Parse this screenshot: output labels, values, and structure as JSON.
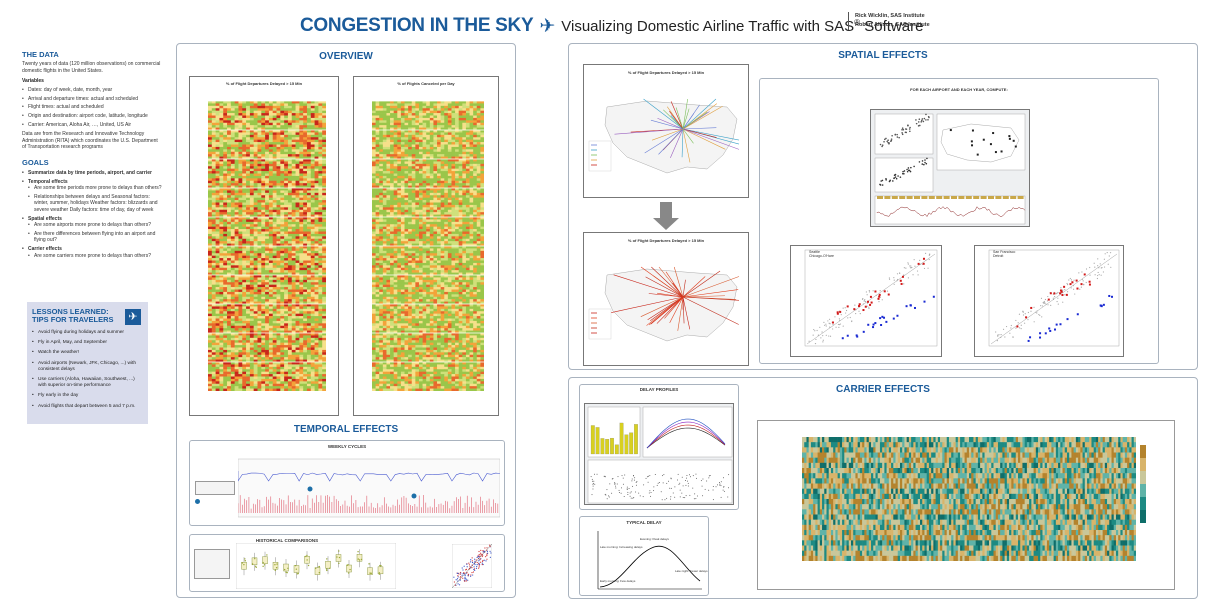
{
  "header": {
    "title": "CONGESTION IN THE SKY",
    "plane_glyph": "✈",
    "subtitle": "Visualizing Domestic Airline Traffic with SAS",
    "registered": "®",
    "subtitle_end": " Software",
    "authors": [
      "Rick Wicklin, SAS Institute",
      "Robert Allison, SAS Institute"
    ]
  },
  "the_data": {
    "title": "THE DATA",
    "intro": "Twenty years of data (120 million observations) on commercial domestic flights in the United States.",
    "variables_label": "Variables",
    "variables": [
      "Dates: day of week, date, month, year",
      "Arrival and departure times: actual and scheduled",
      "Flight times: actual and scheduled",
      "Origin and destination: airport code, latitude, longitude",
      "Carrier: American, Aloha Air, …, United, US Air"
    ],
    "source": "Data are from the Research and Innovative Technology Administration (RITA) which coordinates the U.S. Department of Transportation research programs"
  },
  "goals": {
    "title": "GOALS",
    "items": [
      {
        "label": "Summarize data by time periods, airport, and carrier",
        "sub": []
      },
      {
        "label": "Temporal effects",
        "sub": [
          "Are some time periods more prone to delays than others?",
          "Relationships between delays and Seasonal factors: winter, summer, holidays Weather factors: blizzards and severe weather Daily factors: time of day, day of week"
        ]
      },
      {
        "label": "Spatial effects",
        "sub": [
          "Are some airports more prone to delays than others?",
          "Are there differences between flying into an airport and flying out?"
        ]
      },
      {
        "label": "Carrier effects",
        "sub": [
          "Are some carriers more prone to delays than others?"
        ]
      }
    ]
  },
  "lessons": {
    "title_line1": "LESSONS LEARNED:",
    "title_line2": "TIPS FOR TRAVELERS",
    "icon": "✈",
    "items": [
      "Avoid flying during holidays and summer",
      "Fly in April, May, and September",
      "Watch the weather!",
      "Avoid airports (Newark, JFK, Chicago, ...) with consistent delays",
      "Use carriers (Aloha, Hawaiian, Southwest, ...) with superior on-time performance",
      "Fly early in the day",
      "Avoid flights that depart between 5 and 7 p.m."
    ]
  },
  "overview": {
    "title": "OVERVIEW",
    "chart1_title": "% of Flight Departures Delayed > 15 Min",
    "chart2_title": "% of Flights Canceled per Day"
  },
  "temporal": {
    "title": "TEMPORAL EFFECTS",
    "weekly_title": "WEEKLY CYCLES",
    "historical_title": "HISTORICAL COMPARISONS"
  },
  "spatial": {
    "title": "SPATIAL EFFECTS",
    "map_title": "% of Flight Departures Delayed > 15 Min",
    "compare_heading": "FOR EACH AIRPORT AND EACH YEAR, COMPUTE:",
    "legend_sf": [
      "San Francisco",
      "Detroit"
    ],
    "legend_ch": [
      "Seattle",
      "Chicago-O'Hare"
    ]
  },
  "carrier": {
    "title": "CARRIER EFFECTS",
    "delay_profiles": "DELAY PROFILES",
    "typical_delay": "TYPICAL DELAY",
    "typical_labels": [
      "Early morning: Few delays",
      "Late morning: Increasing delays",
      "Evening: Peak delays",
      "Late night: Fewer delays"
    ]
  },
  "colors": {
    "accent": "#1b5b9a",
    "panel_border": "#a9b3bf",
    "heat_low": "#9ac64a",
    "heat_mid": "#f3a33a",
    "heat_high": "#c8261b",
    "carrier_low": "#1d8a83",
    "carrier_high": "#b4832d"
  }
}
